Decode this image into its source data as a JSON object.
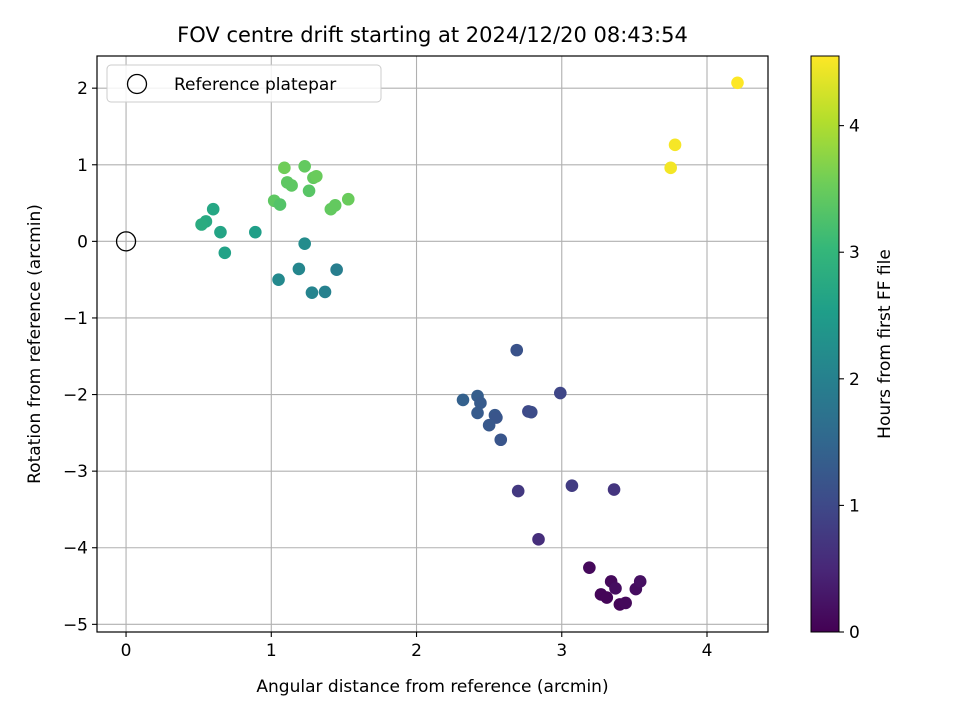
{
  "chart_data": {
    "type": "scatter",
    "title": "FOV centre drift starting at 2024/12/20 08:43:54",
    "xlabel": "Angular distance from reference (arcmin)",
    "ylabel": "Rotation from reference (arcmin)",
    "xlim": [
      -0.2,
      4.42
    ],
    "ylim": [
      -5.1,
      2.42
    ],
    "xticks": [
      0,
      1,
      2,
      3,
      4
    ],
    "yticks": [
      -5,
      -4,
      -3,
      -2,
      -1,
      0,
      1,
      2
    ],
    "grid": true,
    "legend": {
      "position": "upper-left",
      "entries": [
        {
          "label": "Reference platepar",
          "marker": "open-circle"
        }
      ]
    },
    "reference_point": {
      "x": 0,
      "y": 0
    },
    "colorbar": {
      "label": "Hours from first FF file",
      "colormap": "viridis",
      "range": [
        0,
        4.55
      ],
      "ticks": [
        0,
        1,
        2,
        3,
        4
      ]
    },
    "series": [
      {
        "points": [
          {
            "x": 3.19,
            "y": -4.26,
            "c": 0.1
          },
          {
            "x": 3.27,
            "y": -4.61,
            "c": 0.05
          },
          {
            "x": 3.31,
            "y": -4.65,
            "c": 0.05
          },
          {
            "x": 3.34,
            "y": -4.44,
            "c": 0.1
          },
          {
            "x": 3.37,
            "y": -4.53,
            "c": 0.15
          },
          {
            "x": 3.4,
            "y": -4.74,
            "c": 0.05
          },
          {
            "x": 3.44,
            "y": -4.72,
            "c": 0.1
          },
          {
            "x": 3.51,
            "y": -4.54,
            "c": 0.15
          },
          {
            "x": 3.54,
            "y": -4.44,
            "c": 0.2
          },
          {
            "x": 2.84,
            "y": -3.89,
            "c": 0.6
          },
          {
            "x": 2.7,
            "y": -3.26,
            "c": 0.75
          },
          {
            "x": 3.07,
            "y": -3.19,
            "c": 0.8
          },
          {
            "x": 3.36,
            "y": -3.24,
            "c": 0.7
          },
          {
            "x": 2.99,
            "y": -1.98,
            "c": 0.95
          },
          {
            "x": 2.69,
            "y": -1.42,
            "c": 1.15
          },
          {
            "x": 2.77,
            "y": -2.22,
            "c": 1.0
          },
          {
            "x": 2.79,
            "y": -2.23,
            "c": 1.05
          },
          {
            "x": 2.32,
            "y": -2.07,
            "c": 1.4
          },
          {
            "x": 2.42,
            "y": -2.02,
            "c": 1.35
          },
          {
            "x": 2.44,
            "y": -2.11,
            "c": 1.3
          },
          {
            "x": 2.42,
            "y": -2.24,
            "c": 1.3
          },
          {
            "x": 2.54,
            "y": -2.27,
            "c": 1.25
          },
          {
            "x": 2.55,
            "y": -2.3,
            "c": 1.2
          },
          {
            "x": 2.5,
            "y": -2.4,
            "c": 1.25
          },
          {
            "x": 2.58,
            "y": -2.59,
            "c": 1.2
          },
          {
            "x": 1.05,
            "y": -0.5,
            "c": 2.15
          },
          {
            "x": 1.19,
            "y": -0.36,
            "c": 2.1
          },
          {
            "x": 1.28,
            "y": -0.67,
            "c": 2.05
          },
          {
            "x": 1.37,
            "y": -0.66,
            "c": 2.0
          },
          {
            "x": 1.45,
            "y": -0.37,
            "c": 1.95
          },
          {
            "x": 1.23,
            "y": -0.03,
            "c": 2.2
          },
          {
            "x": 0.89,
            "y": 0.12,
            "c": 2.55
          },
          {
            "x": 0.68,
            "y": -0.15,
            "c": 2.6
          },
          {
            "x": 0.65,
            "y": 0.12,
            "c": 2.65
          },
          {
            "x": 0.6,
            "y": 0.42,
            "c": 2.7
          },
          {
            "x": 0.55,
            "y": 0.26,
            "c": 2.75
          },
          {
            "x": 0.52,
            "y": 0.22,
            "c": 2.8
          },
          {
            "x": 1.02,
            "y": 0.53,
            "c": 3.4
          },
          {
            "x": 1.06,
            "y": 0.48,
            "c": 3.3
          },
          {
            "x": 1.09,
            "y": 0.96,
            "c": 3.55
          },
          {
            "x": 1.11,
            "y": 0.77,
            "c": 3.4
          },
          {
            "x": 1.14,
            "y": 0.73,
            "c": 3.4
          },
          {
            "x": 1.23,
            "y": 0.98,
            "c": 3.45
          },
          {
            "x": 1.26,
            "y": 0.66,
            "c": 3.35
          },
          {
            "x": 1.29,
            "y": 0.83,
            "c": 3.45
          },
          {
            "x": 1.31,
            "y": 0.85,
            "c": 3.5
          },
          {
            "x": 1.41,
            "y": 0.42,
            "c": 3.45
          },
          {
            "x": 1.44,
            "y": 0.47,
            "c": 3.45
          },
          {
            "x": 1.53,
            "y": 0.55,
            "c": 3.5
          },
          {
            "x": 3.75,
            "y": 0.96,
            "c": 4.48
          },
          {
            "x": 3.78,
            "y": 1.26,
            "c": 4.5
          },
          {
            "x": 4.21,
            "y": 2.07,
            "c": 4.55
          }
        ]
      }
    ]
  }
}
